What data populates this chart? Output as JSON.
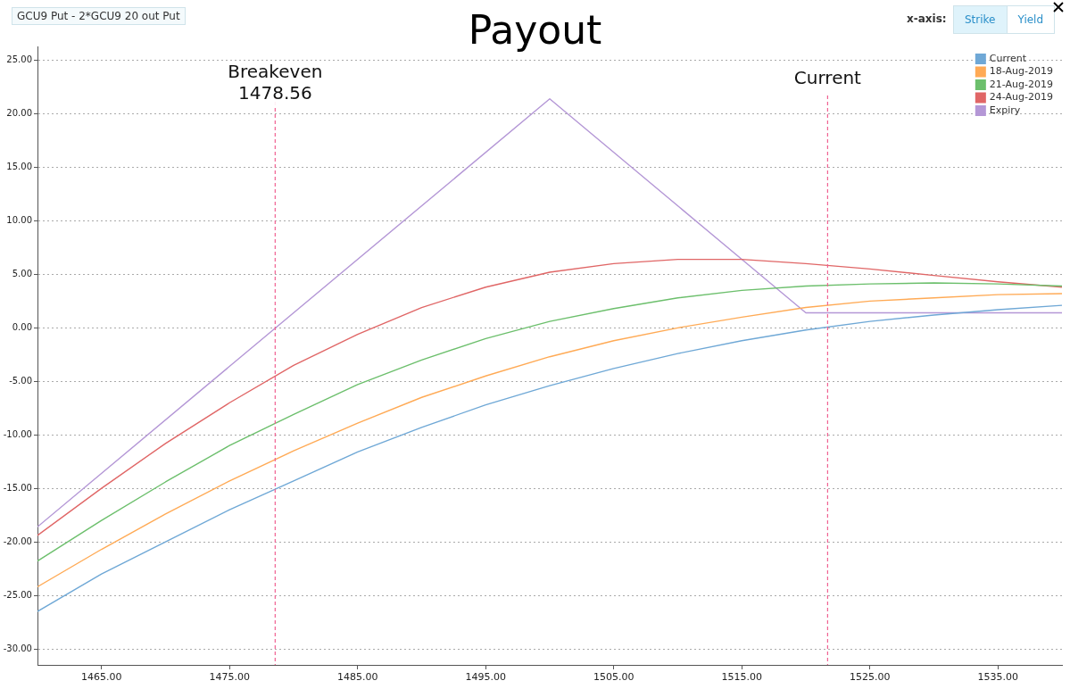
{
  "chart_data": {
    "type": "line",
    "title": "Payout",
    "annotations": [
      "GCU9 Put - 2*GCU9 20 out Put",
      "x-axis:",
      "Strike",
      "Yield"
    ],
    "x": [
      1460,
      1465,
      1470,
      1475,
      1480,
      1485,
      1490,
      1495,
      1500,
      1505,
      1510,
      1515,
      1520,
      1525,
      1530,
      1535,
      1540
    ],
    "series": [
      {
        "name": "Current",
        "color": "#6fa8d6",
        "values": [
          -26.5,
          -23,
          -20,
          -17,
          -14.3,
          -11.6,
          -9.3,
          -7.2,
          -5.4,
          -3.8,
          -2.4,
          -1.2,
          -0.2,
          0.6,
          1.2,
          1.7,
          2.1
        ]
      },
      {
        "name": "18-Aug-2019",
        "color": "#ffaa55",
        "values": [
          -24.2,
          -20.7,
          -17.4,
          -14.3,
          -11.5,
          -8.9,
          -6.5,
          -4.5,
          -2.7,
          -1.2,
          0,
          1,
          1.9,
          2.5,
          2.8,
          3.1,
          3.2
        ]
      },
      {
        "name": "21-Aug-2019",
        "color": "#6cbf6c",
        "values": [
          -21.8,
          -18,
          -14.4,
          -11,
          -8.1,
          -5.3,
          -3,
          -1,
          0.6,
          1.8,
          2.8,
          3.5,
          3.9,
          4.1,
          4.2,
          4.1,
          3.9
        ]
      },
      {
        "name": "24-Aug-2019",
        "color": "#e06666",
        "values": [
          -19.4,
          -15,
          -10.8,
          -7,
          -3.5,
          -0.6,
          1.9,
          3.8,
          5.2,
          6,
          6.4,
          6.4,
          6,
          5.5,
          4.9,
          4.3,
          3.8
        ]
      },
      {
        "name": "Expiry",
        "color": "#b497d6",
        "x": [
          1460,
          1500,
          1520,
          1540
        ],
        "values": [
          -18.6,
          21.4,
          1.4,
          1.4
        ]
      }
    ],
    "xlim": [
      1460,
      1540
    ],
    "xticks": [
      {
        "value": 1465,
        "label": "1465.00"
      },
      {
        "value": 1475,
        "label": "1475.00"
      },
      {
        "value": 1485,
        "label": "1485.00"
      },
      {
        "value": 1495,
        "label": "1495.00"
      },
      {
        "value": 1505,
        "label": "1505.00"
      },
      {
        "value": 1515,
        "label": "1515.00"
      },
      {
        "value": 1525,
        "label": "1525.00"
      },
      {
        "value": 1535,
        "label": "1535.00"
      }
    ],
    "ylim": [
      -31.5,
      26.3
    ],
    "yticks": [
      {
        "value": -30,
        "label": "-30.00"
      },
      {
        "value": -25,
        "label": "-25.00"
      },
      {
        "value": -20,
        "label": "-20.00"
      },
      {
        "value": -15,
        "label": "-15.00"
      },
      {
        "value": -10,
        "label": "-10.00"
      },
      {
        "value": -5,
        "label": "-5.00"
      },
      {
        "value": 0,
        "label": "0.00"
      },
      {
        "value": 5,
        "label": "5.00"
      },
      {
        "value": 10,
        "label": "10.00"
      },
      {
        "value": 15,
        "label": "15.00"
      },
      {
        "value": 20,
        "label": "20.00"
      },
      {
        "value": 25,
        "label": "25.00"
      }
    ],
    "ref_lines": [
      {
        "axis": "x",
        "value": 1478.56,
        "label": "Breakeven 1478.56",
        "color": "#f06292",
        "line_style": "dashed"
      },
      {
        "axis": "x",
        "value": 1521.7,
        "label": "Current",
        "color": "#f06292",
        "line_style": "dashed"
      }
    ],
    "grid": "y",
    "legend": "top right",
    "marker": "none",
    "line_style": "solid"
  }
}
